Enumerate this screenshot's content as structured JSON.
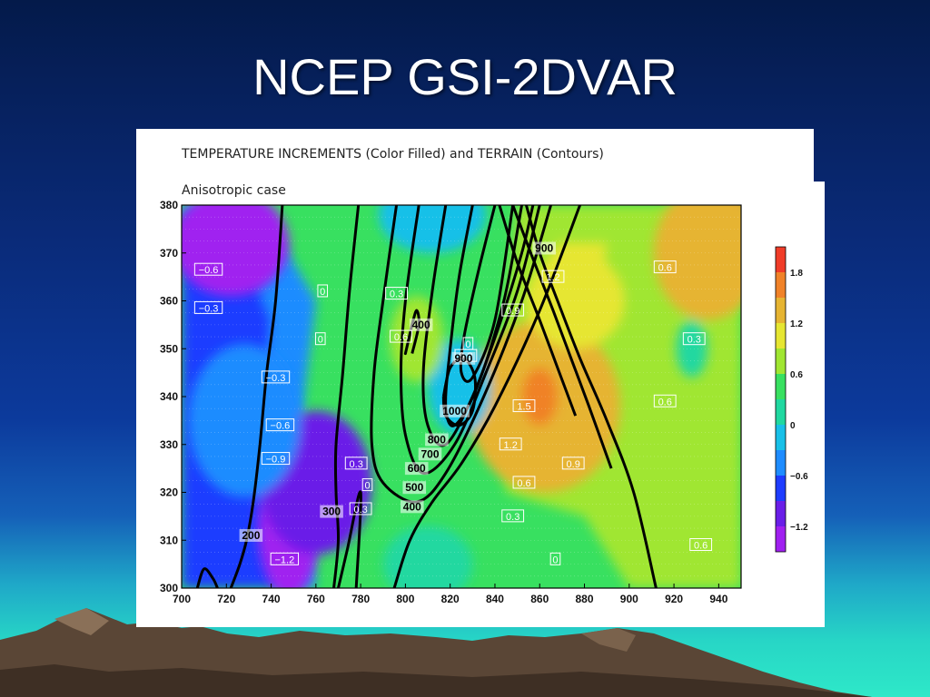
{
  "slide": {
    "title": "NCEP GSI-2DVAR"
  },
  "chart_data": {
    "type": "heatmap",
    "title": "TEMPERATURE INCREMENTS (Color Filled) and TERRAIN (Contours)",
    "subtitle": "Anisotropic case",
    "xlim": [
      700,
      950
    ],
    "ylim": [
      300,
      380
    ],
    "x_ticks": [
      700,
      720,
      740,
      760,
      780,
      800,
      820,
      840,
      860,
      880,
      900,
      920,
      940
    ],
    "y_ticks": [
      300,
      310,
      320,
      330,
      340,
      350,
      360,
      370,
      380
    ],
    "colorbar": {
      "levels": [
        -1.5,
        -1.2,
        -0.9,
        -0.6,
        -0.3,
        0,
        0.3,
        0.6,
        0.9,
        1.2,
        1.5,
        1.8,
        2.1
      ],
      "colors": [
        "#a020f0",
        "#6a1ee8",
        "#1e3cff",
        "#1e8cff",
        "#18c0e8",
        "#20d8a0",
        "#38e060",
        "#a0e632",
        "#e6e632",
        "#e6b432",
        "#f08228",
        "#f03c28",
        "#e61e78"
      ],
      "tick_labels": [
        "1.8",
        "1.2",
        "0.6",
        "0",
        "−0.6",
        "−1.2"
      ],
      "tick_values": [
        1.8,
        1.2,
        0.6,
        0,
        -0.6,
        -1.2
      ]
    },
    "increment_blobs": [
      {
        "x": 722,
        "y": 372,
        "value": -1.25,
        "rx": 26,
        "ry": 11
      },
      {
        "x": 748,
        "y": 313,
        "value": -1.35,
        "rx": 14,
        "ry": 15
      },
      {
        "x": 760,
        "y": 322,
        "value": -0.95,
        "rx": 25,
        "ry": 15
      },
      {
        "x": 728,
        "y": 335,
        "value": -0.45,
        "rx": 25,
        "ry": 16
      },
      {
        "x": 862,
        "y": 338,
        "value": 1.35,
        "rx": 34,
        "ry": 18
      },
      {
        "x": 860,
        "y": 340,
        "value": 1.75,
        "rx": 8,
        "ry": 6
      },
      {
        "x": 876,
        "y": 360,
        "value": 1.05,
        "rx": 22,
        "ry": 10
      },
      {
        "x": 945,
        "y": 374,
        "value": 1.7,
        "rx": 10,
        "ry": 10
      },
      {
        "x": 935,
        "y": 370,
        "value": 1.25,
        "rx": 24,
        "ry": 14
      },
      {
        "x": 824,
        "y": 342,
        "value": -0.2,
        "rx": 14,
        "ry": 10
      },
      {
        "x": 812,
        "y": 378,
        "value": -0.2,
        "rx": 24,
        "ry": 8
      },
      {
        "x": 928,
        "y": 350,
        "value": 0.2,
        "rx": 7,
        "ry": 6
      },
      {
        "x": 805,
        "y": 352,
        "value": 0.7,
        "rx": 12,
        "ry": 9
      },
      {
        "x": 810,
        "y": 305,
        "value": 0.05,
        "rx": 20,
        "ry": 8
      }
    ],
    "contour_labels": [
      {
        "x": 712,
        "y": 366.5,
        "text": "−0.6"
      },
      {
        "x": 712,
        "y": 358.5,
        "text": "−0.3"
      },
      {
        "x": 742,
        "y": 344,
        "text": "−0.3"
      },
      {
        "x": 744,
        "y": 334,
        "text": "−0.6"
      },
      {
        "x": 742,
        "y": 327,
        "text": "−0.9"
      },
      {
        "x": 746,
        "y": 306,
        "text": "−1.2"
      },
      {
        "x": 763,
        "y": 362,
        "text": "0"
      },
      {
        "x": 762,
        "y": 352,
        "text": "0"
      },
      {
        "x": 796,
        "y": 361.5,
        "text": "0.3"
      },
      {
        "x": 798,
        "y": 352.5,
        "text": "0.6"
      },
      {
        "x": 778,
        "y": 326,
        "text": "0.3"
      },
      {
        "x": 783,
        "y": 321.5,
        "text": "0"
      },
      {
        "x": 780,
        "y": 316.5,
        "text": "0.3"
      },
      {
        "x": 828,
        "y": 351,
        "text": "0"
      },
      {
        "x": 827,
        "y": 348.5,
        "text": "0.3"
      },
      {
        "x": 848,
        "y": 358,
        "text": "0.9"
      },
      {
        "x": 866,
        "y": 365,
        "text": "1.2"
      },
      {
        "x": 853,
        "y": 338,
        "text": "1.5"
      },
      {
        "x": 847,
        "y": 330,
        "text": "1.2"
      },
      {
        "x": 875,
        "y": 326,
        "text": "0.9"
      },
      {
        "x": 853,
        "y": 322,
        "text": "0.6"
      },
      {
        "x": 848,
        "y": 315,
        "text": "0.3"
      },
      {
        "x": 867,
        "y": 306,
        "text": "0"
      },
      {
        "x": 916,
        "y": 367,
        "text": "0.6"
      },
      {
        "x": 929,
        "y": 352,
        "text": "0.3"
      },
      {
        "x": 916,
        "y": 339,
        "text": "0.6"
      },
      {
        "x": 932,
        "y": 309,
        "text": "0.6"
      }
    ],
    "terrain_contours": [
      {
        "level": "200",
        "label_x": 731,
        "label_y": 311
      },
      {
        "level": "300",
        "label_x": 767,
        "label_y": 316
      },
      {
        "level": "400",
        "label_x": 803,
        "label_y": 317
      },
      {
        "level": "400",
        "label_x": 807,
        "label_y": 355
      },
      {
        "level": "500",
        "label_x": 804,
        "label_y": 321
      },
      {
        "level": "600",
        "label_x": 805,
        "label_y": 325
      },
      {
        "level": "700",
        "label_x": 811,
        "label_y": 328
      },
      {
        "level": "800",
        "label_x": 814,
        "label_y": 331
      },
      {
        "level": "900",
        "label_x": 826,
        "label_y": 348
      },
      {
        "level": "900",
        "label_x": 862,
        "label_y": 371
      },
      {
        "level": "1000",
        "label_x": 822,
        "label_y": 337
      }
    ]
  }
}
